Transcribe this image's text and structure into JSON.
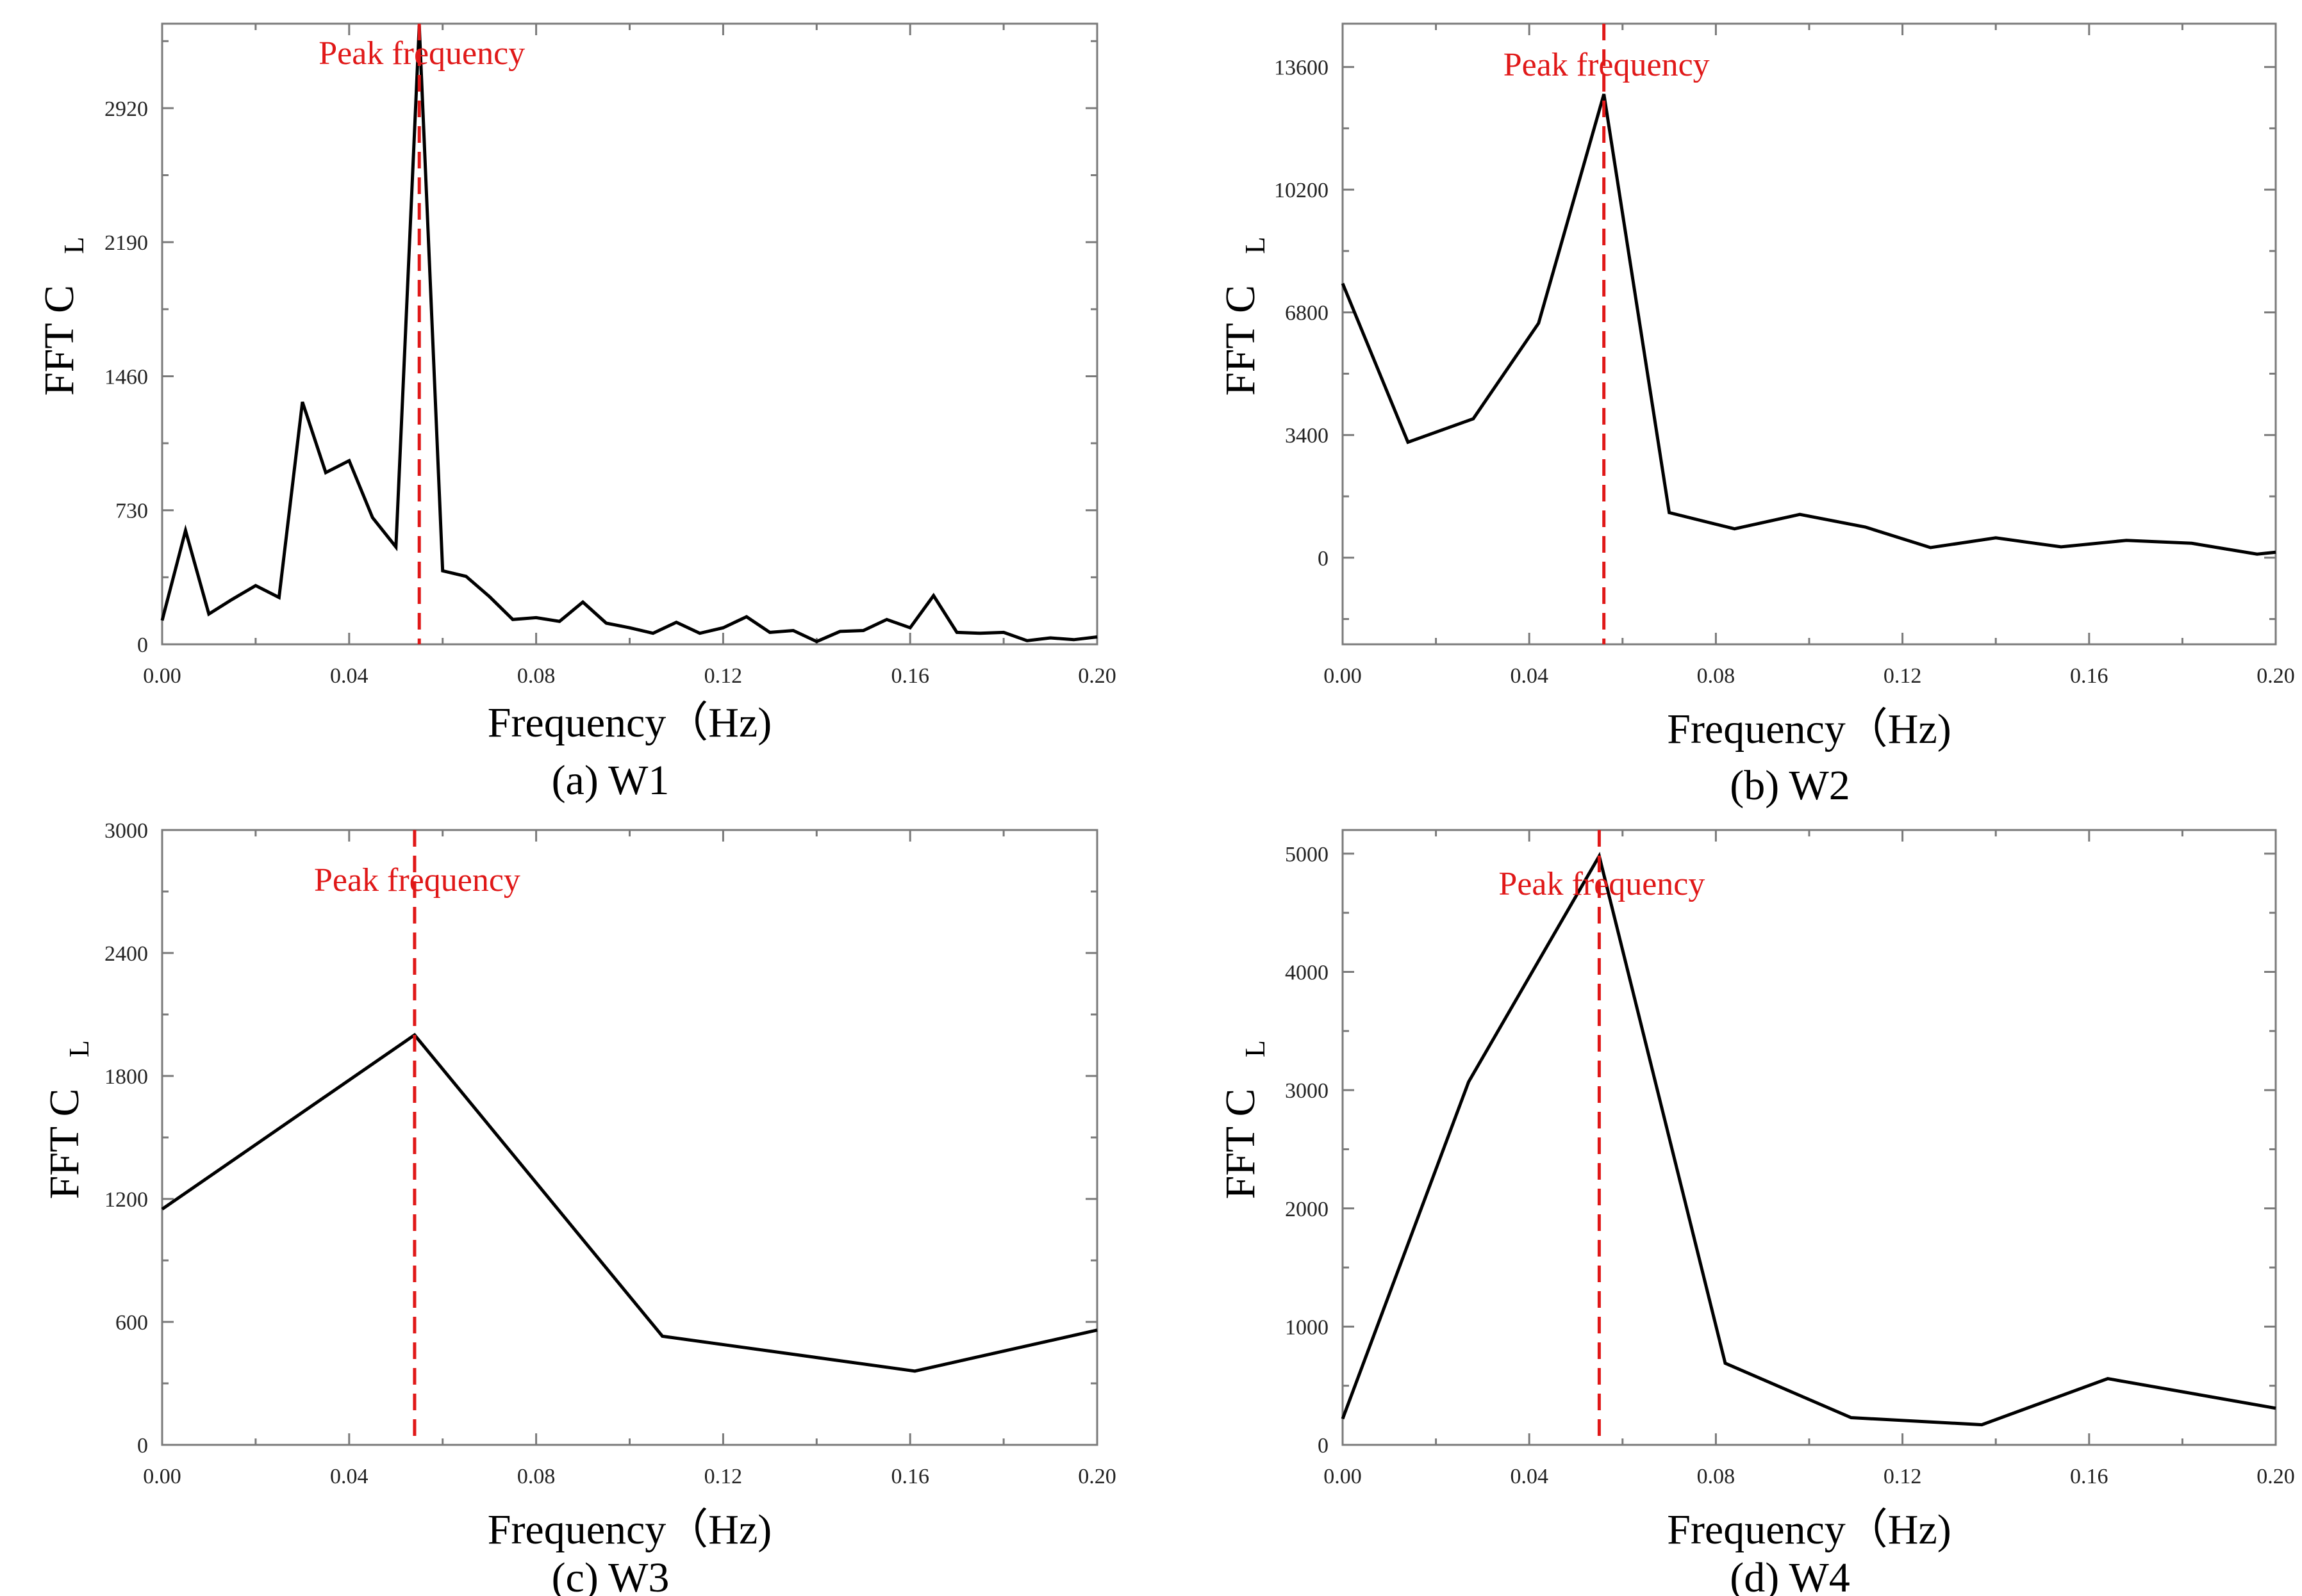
{
  "colors": {
    "series": "#000000",
    "peak": "#e01818",
    "frame": "#7a7a7a"
  },
  "chart_data": [
    {
      "type": "line",
      "caption": "(a)  W1",
      "xlabel": "Frequency（Hz)",
      "ylabel": "FFT  C",
      "ylabel_sub": "L",
      "xlim": [
        0,
        0.2
      ],
      "ylim": [
        0,
        3380
      ],
      "xticks": [
        "0.00",
        "0.04",
        "0.08",
        "0.12",
        "0.16",
        "0.20"
      ],
      "xtick_values": [
        0,
        0.04,
        0.08,
        0.12,
        0.16,
        0.2
      ],
      "yticks": [
        "0",
        "730",
        "1460",
        "2190",
        "2920"
      ],
      "ytick_values": [
        0,
        730,
        1460,
        2190,
        2920
      ],
      "peak_label": "Peak frequency",
      "peak_x": 0.055,
      "series": [
        {
          "name": "FFT CL",
          "x": [
            0,
            0.005,
            0.01,
            0.015,
            0.02,
            0.025,
            0.03,
            0.035,
            0.04,
            0.045,
            0.05,
            0.055,
            0.06,
            0.065,
            0.07,
            0.075,
            0.08,
            0.085,
            0.09,
            0.095,
            0.1,
            0.105,
            0.11,
            0.115,
            0.12,
            0.125,
            0.13,
            0.135,
            0.14,
            0.145,
            0.15,
            0.155,
            0.16,
            0.165,
            0.17,
            0.175,
            0.18,
            0.185,
            0.19,
            0.195,
            0.2
          ],
          "values": [
            130,
            620,
            165,
            245,
            320,
            255,
            1320,
            935,
            1000,
            690,
            530,
            3370,
            400,
            370,
            260,
            135,
            145,
            125,
            230,
            115,
            90,
            60,
            120,
            60,
            90,
            150,
            65,
            75,
            15,
            70,
            75,
            135,
            90,
            265,
            65,
            60,
            65,
            20,
            35,
            25,
            40
          ]
        }
      ]
    },
    {
      "type": "line",
      "caption": "(b)  W2",
      "xlabel": "Frequency（Hz)",
      "ylabel": "FFT  C",
      "ylabel_sub": "L",
      "xlim": [
        0,
        0.2
      ],
      "ylim": [
        -2400,
        14800
      ],
      "xticks": [
        "0.00",
        "0.04",
        "0.08",
        "0.12",
        "0.16",
        "0.20"
      ],
      "xtick_values": [
        0,
        0.04,
        0.08,
        0.12,
        0.16,
        0.2
      ],
      "yticks": [
        "0",
        "3400",
        "6800",
        "10200",
        "13600"
      ],
      "ytick_values": [
        0,
        3400,
        6800,
        10200,
        13600
      ],
      "peak_label": "Peak frequency",
      "peak_x": 0.056,
      "series": [
        {
          "name": "FFT CL",
          "x": [
            0,
            0.014,
            0.028,
            0.042,
            0.056,
            0.07,
            0.084,
            0.098,
            0.112,
            0.126,
            0.14,
            0.154,
            0.168,
            0.182,
            0.196,
            0.2
          ],
          "values": [
            7600,
            3200,
            3850,
            6500,
            12850,
            1250,
            800,
            1200,
            850,
            280,
            550,
            300,
            480,
            400,
            100,
            150
          ]
        }
      ]
    },
    {
      "type": "line",
      "caption": "(c)  W3",
      "xlabel": "Frequency（Hz)",
      "ylabel": "FFT  C",
      "ylabel_sub": "L",
      "xlim": [
        0,
        0.2
      ],
      "ylim": [
        0,
        3000
      ],
      "xticks": [
        "0.00",
        "0.04",
        "0.08",
        "0.12",
        "0.16",
        "0.20"
      ],
      "xtick_values": [
        0,
        0.04,
        0.08,
        0.12,
        0.16,
        0.2
      ],
      "yticks": [
        "0",
        "600",
        "1200",
        "1800",
        "2400",
        "3000"
      ],
      "ytick_values": [
        0,
        600,
        1200,
        1800,
        2400,
        3000
      ],
      "peak_label": "Peak frequency",
      "peak_x": 0.054,
      "series": [
        {
          "name": "FFT CL",
          "x": [
            0,
            0.054,
            0.107,
            0.161,
            0.2
          ],
          "values": [
            1150,
            2000,
            530,
            360,
            560
          ]
        }
      ]
    },
    {
      "type": "line",
      "caption": "(d)  W4",
      "xlabel": "Frequency（Hz)",
      "ylabel": "FFT  C",
      "ylabel_sub": "L",
      "xlim": [
        0,
        0.2
      ],
      "ylim": [
        0,
        5200
      ],
      "xticks": [
        "0.00",
        "0.04",
        "0.08",
        "0.12",
        "0.16",
        "0.20"
      ],
      "xtick_values": [
        0,
        0.04,
        0.08,
        0.12,
        0.16,
        0.2
      ],
      "yticks": [
        "0",
        "1000",
        "2000",
        "3000",
        "4000",
        "5000"
      ],
      "ytick_values": [
        0,
        1000,
        2000,
        3000,
        4000,
        5000
      ],
      "peak_label": "Peak frequency",
      "peak_x": 0.055,
      "series": [
        {
          "name": "FFT CL",
          "x": [
            0,
            0.027,
            0.055,
            0.082,
            0.109,
            0.137,
            0.164,
            0.2
          ],
          "values": [
            220,
            3070,
            4980,
            690,
            230,
            170,
            560,
            310
          ]
        }
      ]
    }
  ]
}
